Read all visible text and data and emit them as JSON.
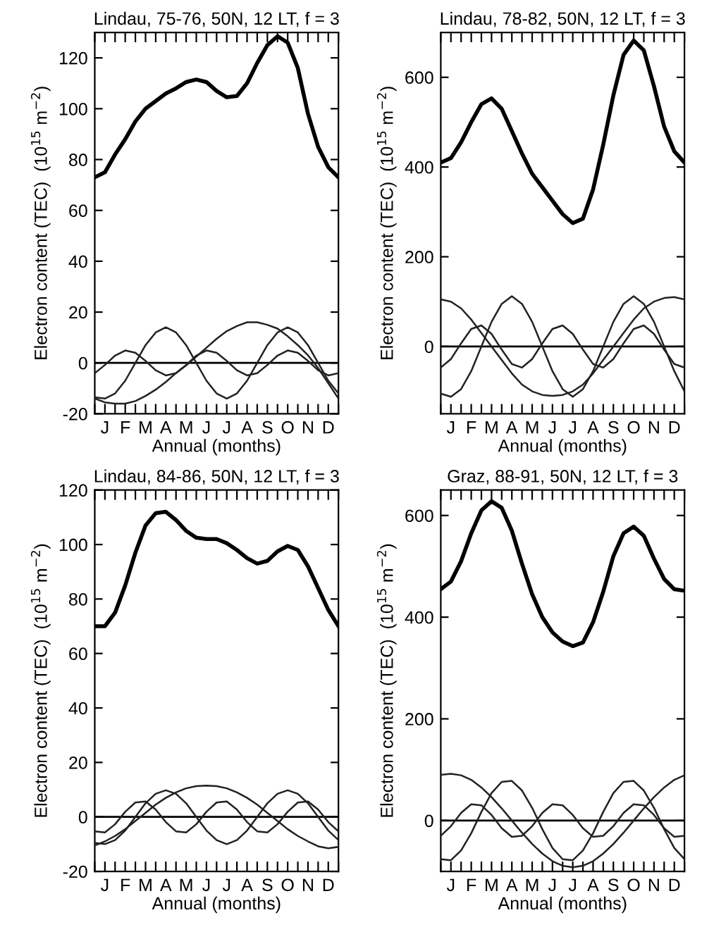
{
  "chart_data": [
    {
      "type": "line",
      "title": "Lindau, 75-76, 50N, 12 LT, f = 3",
      "xlabel": "Annual (months)",
      "ylabel": "Electron content (TEC)  (10$^{15}$ m$^{−2}$)",
      "categories": [
        null,
        "J",
        null,
        "F",
        null,
        "M",
        null,
        "A",
        null,
        "M",
        null,
        "J",
        null,
        "J",
        null,
        "A",
        null,
        "S",
        null,
        "O",
        null,
        "N",
        null,
        "D",
        null
      ],
      "ylim": [
        -20,
        130
      ],
      "yticks": [
        -20,
        0,
        20,
        40,
        60,
        80,
        100,
        120
      ],
      "ref_lines": [
        {
          "axis": "y",
          "value": 0,
          "color": "#000000"
        }
      ],
      "series": [
        {
          "color": "#000000",
          "values": [
            73,
            75,
            82,
            88,
            95,
            100,
            103,
            106,
            108,
            110.5,
            111.5,
            110.5,
            107,
            104.5,
            105,
            110,
            118,
            125,
            128.5,
            126,
            116,
            98,
            85,
            77,
            73
          ]
        },
        {
          "color": "#222222",
          "values": [
            -14,
            -15.5,
            -16,
            -16,
            -15,
            -13,
            -10.5,
            -7.5,
            -4,
            -1,
            2.5,
            6,
            9.5,
            12.5,
            14.5,
            16,
            16,
            15,
            13.5,
            10.5,
            7,
            3,
            -2,
            -8,
            -14
          ]
        },
        {
          "color": "#222222",
          "values": [
            -13.5,
            -14,
            -12,
            -7,
            0,
            7,
            12,
            14,
            12,
            7,
            0,
            -7,
            -12,
            -14,
            -12,
            -7,
            0,
            7,
            12,
            14,
            12,
            7,
            0,
            -7,
            -12
          ]
        },
        {
          "color": "#222222",
          "values": [
            -4,
            -0.8,
            2.9,
            4.9,
            4,
            0.8,
            -2.9,
            -4.9,
            -4,
            -0.8,
            2.9,
            4.9,
            4,
            0.8,
            -2.9,
            -4.9,
            -4,
            -0.8,
            2.9,
            4.9,
            4,
            0.8,
            -2.9,
            -4.9,
            -4
          ]
        }
      ],
      "grid": false,
      "legend": false
    },
    {
      "type": "line",
      "title": "Lindau, 78-82, 50N, 12 LT, f = 3",
      "xlabel": "Annual (months)",
      "ylabel": "Electron content (TEC)  (10$^{15}$ m$^{−2}$)",
      "categories": [
        null,
        "J",
        null,
        "F",
        null,
        "M",
        null,
        "A",
        null,
        "M",
        null,
        "J",
        null,
        "J",
        null,
        "A",
        null,
        "S",
        null,
        "O",
        null,
        "N",
        null,
        "D",
        null
      ],
      "ylim": [
        -150,
        700
      ],
      "yticks": [
        0,
        200,
        400,
        600
      ],
      "ref_lines": [
        {
          "axis": "y",
          "value": 0,
          "color": "#000000"
        }
      ],
      "series": [
        {
          "color": "#000000",
          "values": [
            410,
            420,
            455,
            500,
            540,
            553,
            530,
            480,
            430,
            385,
            355,
            325,
            295,
            275,
            285,
            350,
            450,
            560,
            650,
            682,
            660,
            580,
            490,
            435,
            410
          ]
        },
        {
          "color": "#222222",
          "values": [
            105,
            100,
            85,
            60,
            30,
            0,
            -30,
            -60,
            -85,
            -100,
            -108,
            -110,
            -108,
            -100,
            -85,
            -60,
            -30,
            0,
            30,
            60,
            85,
            100,
            108,
            110,
            105
          ]
        },
        {
          "color": "#222222",
          "values": [
            -105,
            -112,
            -95,
            -55,
            0,
            55,
            95,
            112,
            95,
            55,
            0,
            -55,
            -95,
            -112,
            -95,
            -55,
            0,
            55,
            95,
            112,
            95,
            55,
            0,
            -55,
            -100
          ]
        },
        {
          "color": "#222222",
          "values": [
            -47,
            -28,
            7,
            39,
            47,
            28,
            -7,
            -39,
            -47,
            -28,
            7,
            39,
            47,
            28,
            -7,
            -39,
            -47,
            -28,
            7,
            39,
            47,
            28,
            -7,
            -39,
            -47
          ]
        }
      ],
      "grid": false,
      "legend": false
    },
    {
      "type": "line",
      "title": "Lindau, 84-86, 50N, 12 LT, f = 3",
      "xlabel": "Annual (months)",
      "ylabel": "Electron content (TEC)  (10$^{15}$ m$^{−2}$)",
      "categories": [
        null,
        "J",
        null,
        "F",
        null,
        "M",
        null,
        "A",
        null,
        "M",
        null,
        "J",
        null,
        "J",
        null,
        "A",
        null,
        "S",
        null,
        "O",
        null,
        "N",
        null,
        "D",
        null
      ],
      "ylim": [
        -20,
        120
      ],
      "yticks": [
        -20,
        0,
        20,
        40,
        60,
        80,
        100,
        120
      ],
      "ref_lines": [
        {
          "axis": "y",
          "value": 0,
          "color": "#000000"
        }
      ],
      "series": [
        {
          "color": "#000000",
          "values": [
            70,
            70,
            75,
            85,
            97,
            107,
            111.5,
            112,
            109,
            105,
            102.5,
            102,
            102,
            100.5,
            98,
            95,
            93,
            94,
            97.5,
            99.5,
            98,
            92,
            84,
            76,
            70
          ]
        },
        {
          "color": "#222222",
          "values": [
            -10.5,
            -9,
            -7,
            -4.5,
            -1.5,
            1.5,
            4.5,
            7,
            9,
            10.5,
            11.3,
            11.5,
            11.3,
            10.5,
            9,
            7,
            4.5,
            1.5,
            -1.5,
            -4.5,
            -7,
            -9,
            -10.8,
            -11.5,
            -11
          ]
        },
        {
          "color": "#222222",
          "values": [
            -9.5,
            -10,
            -8.5,
            -5,
            0,
            5,
            8.5,
            9.8,
            8.5,
            5,
            0,
            -5,
            -8.5,
            -10,
            -8.5,
            -5,
            0,
            5,
            8.5,
            9.8,
            8.5,
            5,
            0,
            -5,
            -8.5
          ]
        },
        {
          "color": "#222222",
          "values": [
            -5.3,
            -5.7,
            -2.7,
            1.9,
            5.3,
            5.7,
            2.7,
            -1.9,
            -5.3,
            -5.7,
            -2.7,
            1.9,
            5.3,
            5.7,
            2.7,
            -1.9,
            -5.3,
            -5.7,
            -2.7,
            1.9,
            5.3,
            5.7,
            2.7,
            -1.9,
            -5.3
          ]
        }
      ],
      "grid": false,
      "legend": false
    },
    {
      "type": "line",
      "title": "Graz, 88-91, 50N, 12 LT, f = 3",
      "xlabel": "Annual (months)",
      "ylabel": "Electron content (TEC)  (10$^{15}$ m$^{−2}$)",
      "categories": [
        null,
        "J",
        null,
        "F",
        null,
        "M",
        null,
        "A",
        null,
        "M",
        null,
        "J",
        null,
        "J",
        null,
        "A",
        null,
        "S",
        null,
        "O",
        null,
        "N",
        null,
        "D",
        null
      ],
      "ylim": [
        -100,
        650
      ],
      "yticks": [
        0,
        200,
        400,
        600
      ],
      "ref_lines": [
        {
          "axis": "y",
          "value": 0,
          "color": "#000000"
        }
      ],
      "series": [
        {
          "color": "#000000",
          "values": [
            455,
            470,
            510,
            565,
            610,
            628,
            615,
            570,
            505,
            445,
            400,
            370,
            352,
            343,
            350,
            390,
            450,
            520,
            565,
            578,
            560,
            515,
            475,
            455,
            452
          ]
        },
        {
          "color": "#222222",
          "values": [
            90,
            92,
            89,
            80,
            65,
            46,
            24,
            0,
            -24,
            -46,
            -65,
            -80,
            -89,
            -92,
            -89,
            -80,
            -65,
            -46,
            -24,
            0,
            24,
            46,
            65,
            80,
            89
          ]
        },
        {
          "color": "#222222",
          "values": [
            -76,
            -78,
            -59,
            -25,
            17,
            54,
            76,
            78,
            59,
            25,
            -17,
            -54,
            -76,
            -78,
            -59,
            -25,
            17,
            54,
            76,
            78,
            59,
            25,
            -17,
            -54,
            -76
          ]
        },
        {
          "color": "#222222",
          "values": [
            -30,
            -11,
            15,
            32,
            30,
            11,
            -15,
            -32,
            -30,
            -11,
            15,
            32,
            30,
            11,
            -15,
            -32,
            -30,
            -11,
            15,
            32,
            30,
            11,
            -15,
            -32,
            -30
          ]
        }
      ],
      "grid": false,
      "legend": false
    }
  ]
}
